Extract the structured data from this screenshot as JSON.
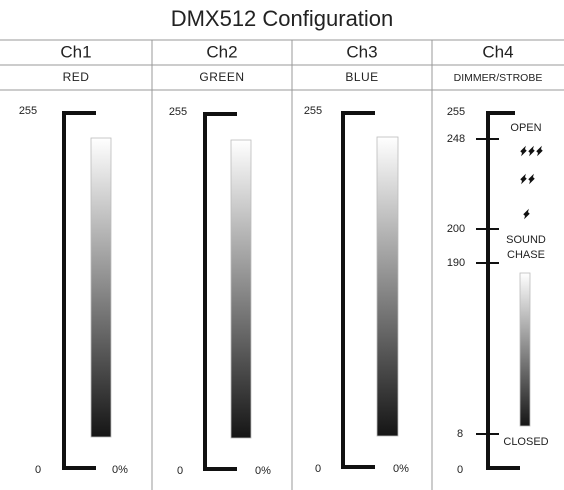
{
  "title": "DMX512 Configuration",
  "channels": [
    {
      "name": "Ch1",
      "label": "RED",
      "max": 255,
      "min": 0,
      "percent": "0%"
    },
    {
      "name": "Ch2",
      "label": "GREEN",
      "max": 255,
      "min": 0,
      "percent": "0%"
    },
    {
      "name": "Ch3",
      "label": "BLUE",
      "max": 255,
      "min": 0,
      "percent": "0%"
    },
    {
      "name": "Ch4",
      "label": "DIMMER/STROBE",
      "levels": [
        255,
        248,
        200,
        190,
        8,
        0
      ],
      "notes": [
        "OPEN",
        "SOUND",
        "CHASE",
        "CLOSED"
      ]
    }
  ]
}
